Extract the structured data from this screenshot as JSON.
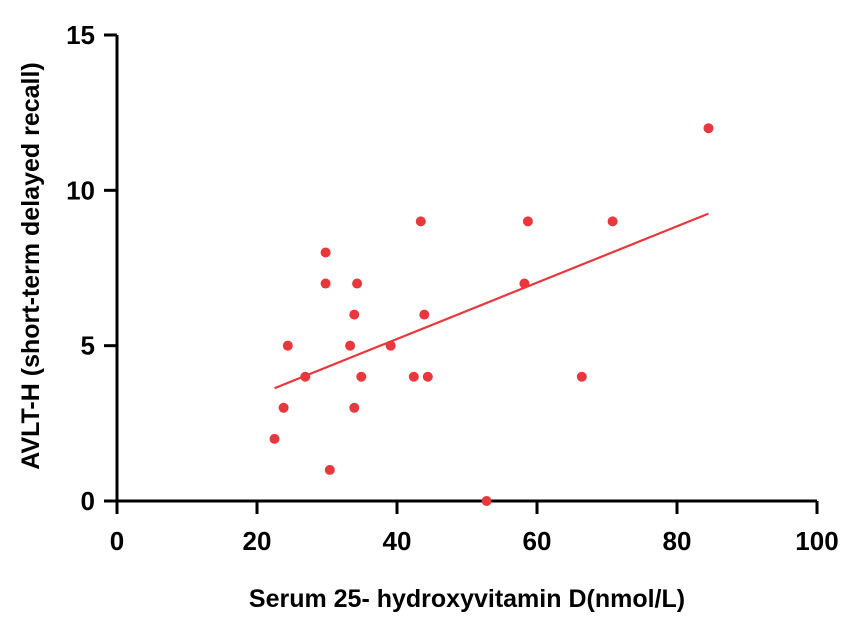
{
  "chart_data": {
    "type": "scatter",
    "title": "",
    "xlabel": "Serum 25- hydroxyvitamin D(nmol/L)",
    "ylabel": "AVLT-H (short-term delayed recall)",
    "xlim": [
      0,
      100
    ],
    "ylim": [
      0,
      15
    ],
    "xticks": [
      0,
      20,
      40,
      60,
      80,
      100
    ],
    "yticks": [
      0,
      5,
      10,
      15
    ],
    "xtick_labels": [
      "0",
      "20",
      "40",
      "60",
      "80",
      "100"
    ],
    "ytick_labels": [
      "0",
      "5",
      "10",
      "15"
    ],
    "grid": false,
    "legend": "none",
    "colors": {
      "points": "#e8383d",
      "trend_line": "#e8383d",
      "axes": "#000000"
    },
    "points": [
      {
        "x": 22.5,
        "y": 2
      },
      {
        "x": 23.8,
        "y": 3
      },
      {
        "x": 24.4,
        "y": 5
      },
      {
        "x": 26.9,
        "y": 4
      },
      {
        "x": 29.8,
        "y": 8
      },
      {
        "x": 29.8,
        "y": 7
      },
      {
        "x": 30.4,
        "y": 1
      },
      {
        "x": 33.3,
        "y": 5
      },
      {
        "x": 33.9,
        "y": 6
      },
      {
        "x": 33.9,
        "y": 3
      },
      {
        "x": 34.3,
        "y": 7
      },
      {
        "x": 34.9,
        "y": 4
      },
      {
        "x": 39.1,
        "y": 5
      },
      {
        "x": 42.4,
        "y": 4
      },
      {
        "x": 43.4,
        "y": 9
      },
      {
        "x": 43.9,
        "y": 6
      },
      {
        "x": 44.4,
        "y": 4
      },
      {
        "x": 52.8,
        "y": 0
      },
      {
        "x": 58.2,
        "y": 7
      },
      {
        "x": 58.7,
        "y": 9
      },
      {
        "x": 66.4,
        "y": 4
      },
      {
        "x": 70.8,
        "y": 9
      },
      {
        "x": 84.5,
        "y": 12
      }
    ],
    "trend_line": {
      "x": [
        22.5,
        84.5
      ],
      "y": [
        3.63,
        9.25
      ]
    }
  }
}
